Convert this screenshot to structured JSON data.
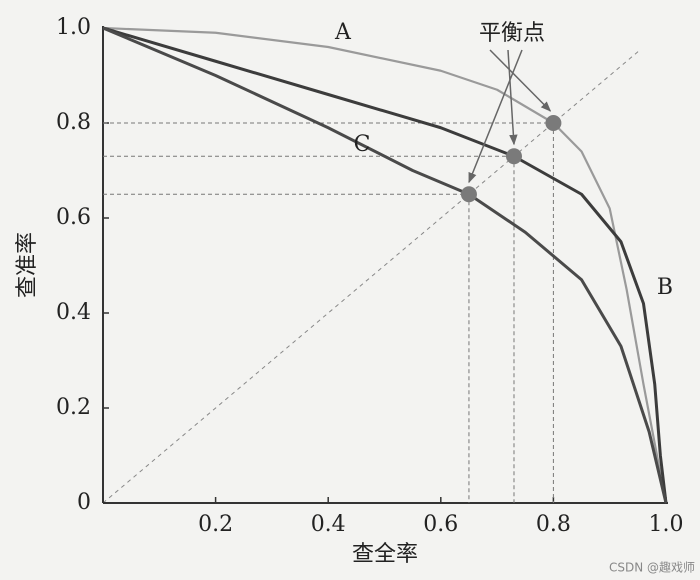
{
  "chart_data": {
    "type": "line",
    "x_label": "查全率",
    "y_label": "查准率",
    "annotation": "平衡点",
    "watermark": "CSDN @趣戏师",
    "xlim": [
      0,
      1
    ],
    "ylim": [
      0,
      1
    ],
    "xticks": [
      0.2,
      0.4,
      0.6,
      0.8,
      {
        "value": 1,
        "label": "1.0"
      }
    ],
    "yticks": [
      0,
      0.2,
      0.4,
      0.6,
      0.8,
      {
        "value": 1,
        "label": "1.0"
      }
    ],
    "series": [
      {
        "name": "A",
        "color": "#9a9a9a",
        "x": [
          0,
          0.2,
          0.4,
          0.6,
          0.7,
          0.8,
          0.85,
          0.9,
          0.93,
          0.96,
          1.0
        ],
        "values": [
          1.0,
          0.99,
          0.96,
          0.91,
          0.87,
          0.8,
          0.74,
          0.62,
          0.45,
          0.25,
          0
        ]
      },
      {
        "name": "B",
        "color": "#3c3c3c",
        "x": [
          0,
          0.2,
          0.4,
          0.6,
          0.73,
          0.85,
          0.92,
          0.96,
          0.98,
          0.99,
          1.0
        ],
        "values": [
          1.0,
          0.93,
          0.86,
          0.79,
          0.73,
          0.65,
          0.55,
          0.42,
          0.25,
          0.1,
          0
        ]
      },
      {
        "name": "C",
        "color": "#4a4a4a",
        "x": [
          0,
          0.2,
          0.4,
          0.55,
          0.65,
          0.75,
          0.85,
          0.92,
          0.97,
          1.0
        ],
        "values": [
          1.0,
          0.9,
          0.79,
          0.7,
          0.65,
          0.57,
          0.47,
          0.33,
          0.15,
          0
        ]
      }
    ],
    "points": {
      "color": "#7a7a7a",
      "x": [
        0.8,
        0.73,
        0.65
      ],
      "values": [
        0.8,
        0.73,
        0.65
      ]
    }
  }
}
